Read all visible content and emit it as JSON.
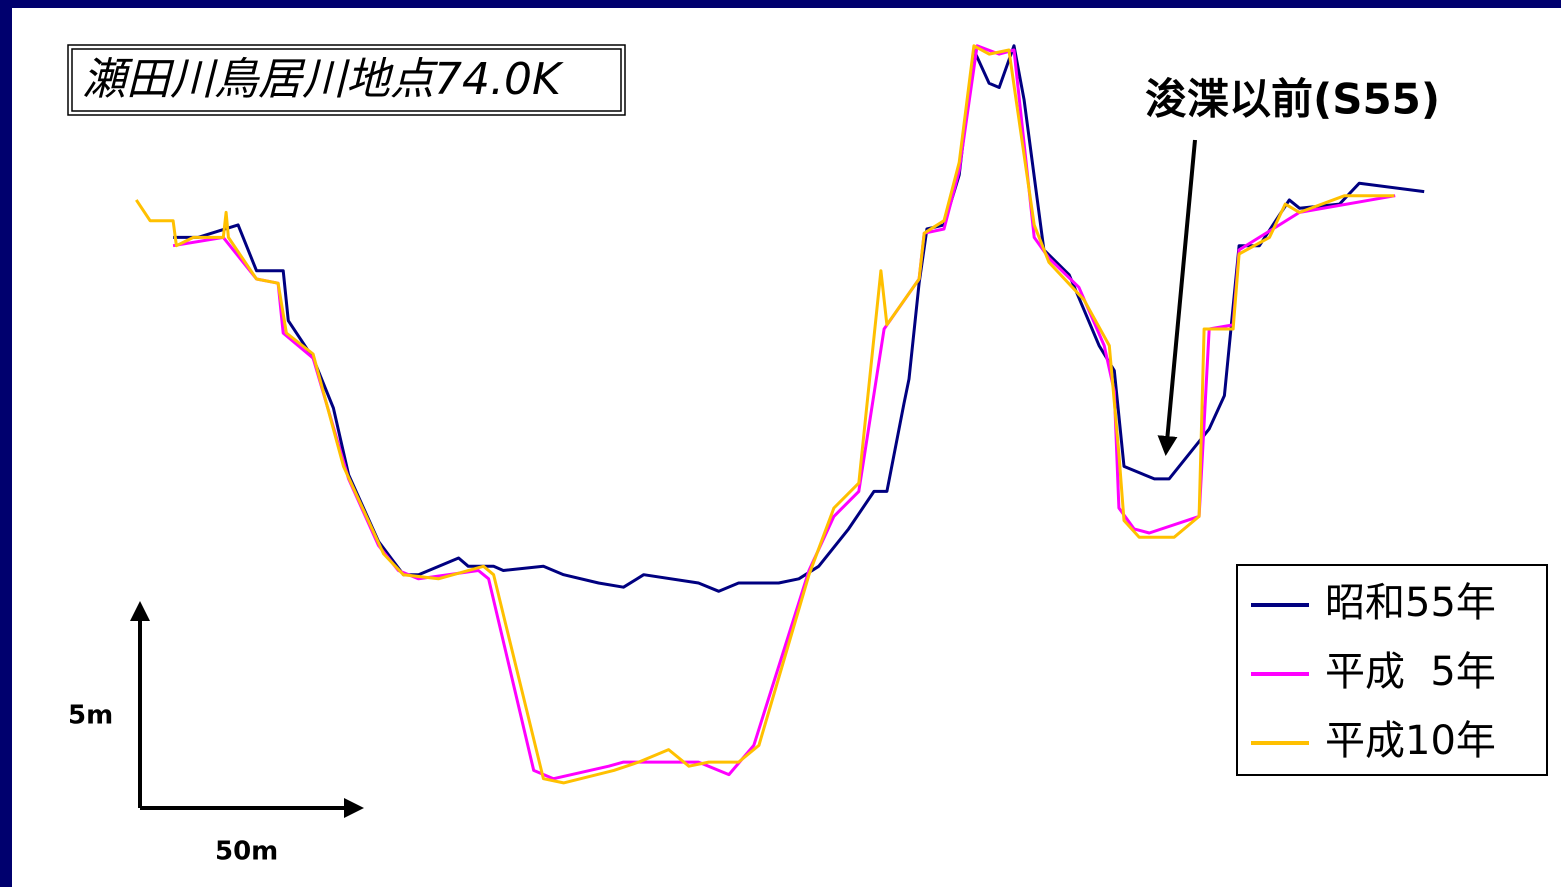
{
  "chart_data": {
    "type": "line",
    "title": "瀬田川鳥居川地点74.0K",
    "annotation": "浚渫以前(S55)",
    "scale_x_label": "50m",
    "scale_y_label": "5m",
    "xlim": [
      -30,
      309
    ],
    "ylim": [
      -1.9,
      19.4
    ],
    "legend": "bottom-right",
    "series": [
      {
        "name": "昭和55年",
        "color": "#000080",
        "x": [
          7.6,
          13.0,
          21.7,
          25.7,
          31.5,
          32.6,
          38.0,
          42.4,
          45.7,
          52.2,
          57.6,
          60.9,
          69.6,
          71.7,
          77.2,
          79.3,
          88.0,
          92.4,
          100.0,
          105.4,
          109.8,
          121.7,
          126.1,
          130.4,
          139.1,
          143.5,
          147.8,
          154.3,
          159.8,
          162.6,
          166.3,
          167.4,
          169.6,
          171.3,
          175.0,
          178.3,
          181.5,
          184.8,
          187.0,
          190.2,
          192.4,
          196.7,
          202.2,
          208.7,
          212.0,
          214.1,
          220.7,
          223.9,
          232.6,
          235.9,
          239.1,
          243.5,
          250.0,
          252.2,
          260.9,
          265.2,
          279.3
        ],
        "values": [
          13.7,
          13.7,
          14.0,
          12.9,
          12.9,
          11.7,
          10.8,
          9.6,
          8.0,
          6.4,
          5.6,
          5.6,
          6.0,
          5.8,
          5.8,
          5.7,
          5.8,
          5.6,
          5.4,
          5.3,
          5.6,
          5.4,
          5.2,
          5.4,
          5.4,
          5.5,
          5.8,
          6.7,
          7.6,
          7.6,
          9.7,
          10.3,
          12.6,
          13.9,
          14.0,
          15.2,
          18.2,
          17.4,
          17.3,
          18.3,
          17.0,
          13.4,
          12.8,
          11.1,
          10.5,
          8.2,
          7.9,
          7.9,
          9.1,
          9.9,
          13.5,
          13.5,
          14.6,
          14.4,
          14.5,
          15.0,
          14.8
        ]
      },
      {
        "name": "平成  5年",
        "color": "#ff00ff",
        "x": [
          7.6,
          18.5,
          25.7,
          30.4,
          31.5,
          38.0,
          45.7,
          52.2,
          56.5,
          60.9,
          73.9,
          76.1,
          85.9,
          90.2,
          102.2,
          105.4,
          121.7,
          128.3,
          133.7,
          145.7,
          151.1,
          156.5,
          162.0,
          169.6,
          170.7,
          175.0,
          178.3,
          182.2,
          187.0,
          190.2,
          194.6,
          197.8,
          204.3,
          209.8,
          212.0,
          213.0,
          216.3,
          219.6,
          230.4,
          232.6,
          237.8,
          239.1,
          252.2,
          273.0
        ],
        "values": [
          13.5,
          13.7,
          12.7,
          12.6,
          11.4,
          10.8,
          7.9,
          6.3,
          5.7,
          5.5,
          5.7,
          5.5,
          0.9,
          0.7,
          1.0,
          1.1,
          1.1,
          0.8,
          1.5,
          5.7,
          7.0,
          7.6,
          11.5,
          12.7,
          13.8,
          13.9,
          15.3,
          18.3,
          18.1,
          18.2,
          13.7,
          13.2,
          12.5,
          11.1,
          10.0,
          7.2,
          6.7,
          6.6,
          7.0,
          11.5,
          11.6,
          13.4,
          14.3,
          14.7
        ]
      },
      {
        "name": "平成10年",
        "color": "#ffc000",
        "x": [
          -0.4,
          2.6,
          7.6,
          8.3,
          12.0,
          18.5,
          19.1,
          19.6,
          25.7,
          30.4,
          32.2,
          38.0,
          44.6,
          53.3,
          57.6,
          65.2,
          75.0,
          77.2,
          88.0,
          92.4,
          103.3,
          108.7,
          115.2,
          119.6,
          123.9,
          130.4,
          134.8,
          145.7,
          151.1,
          156.5,
          161.3,
          162.6,
          169.6,
          170.7,
          175.0,
          178.3,
          181.5,
          184.8,
          189.1,
          194.6,
          197.8,
          205.4,
          210.9,
          213.0,
          214.1,
          217.4,
          225.0,
          230.4,
          231.5,
          237.8,
          239.1,
          245.7,
          249.1,
          252.2,
          262.0,
          272.8
        ],
        "values": [
          14.6,
          14.1,
          14.1,
          13.5,
          13.7,
          13.7,
          14.3,
          13.7,
          12.7,
          12.6,
          11.4,
          10.9,
          8.2,
          6.1,
          5.6,
          5.5,
          5.8,
          5.6,
          0.7,
          0.6,
          0.9,
          1.1,
          1.4,
          1.0,
          1.1,
          1.1,
          1.5,
          5.6,
          7.2,
          7.8,
          12.9,
          11.6,
          12.7,
          13.8,
          14.1,
          15.5,
          18.3,
          18.1,
          18.2,
          14.0,
          13.1,
          12.2,
          11.1,
          8.5,
          6.9,
          6.5,
          6.5,
          7.0,
          11.5,
          11.5,
          13.3,
          13.7,
          14.5,
          14.3,
          14.7,
          14.7
        ]
      }
    ]
  }
}
